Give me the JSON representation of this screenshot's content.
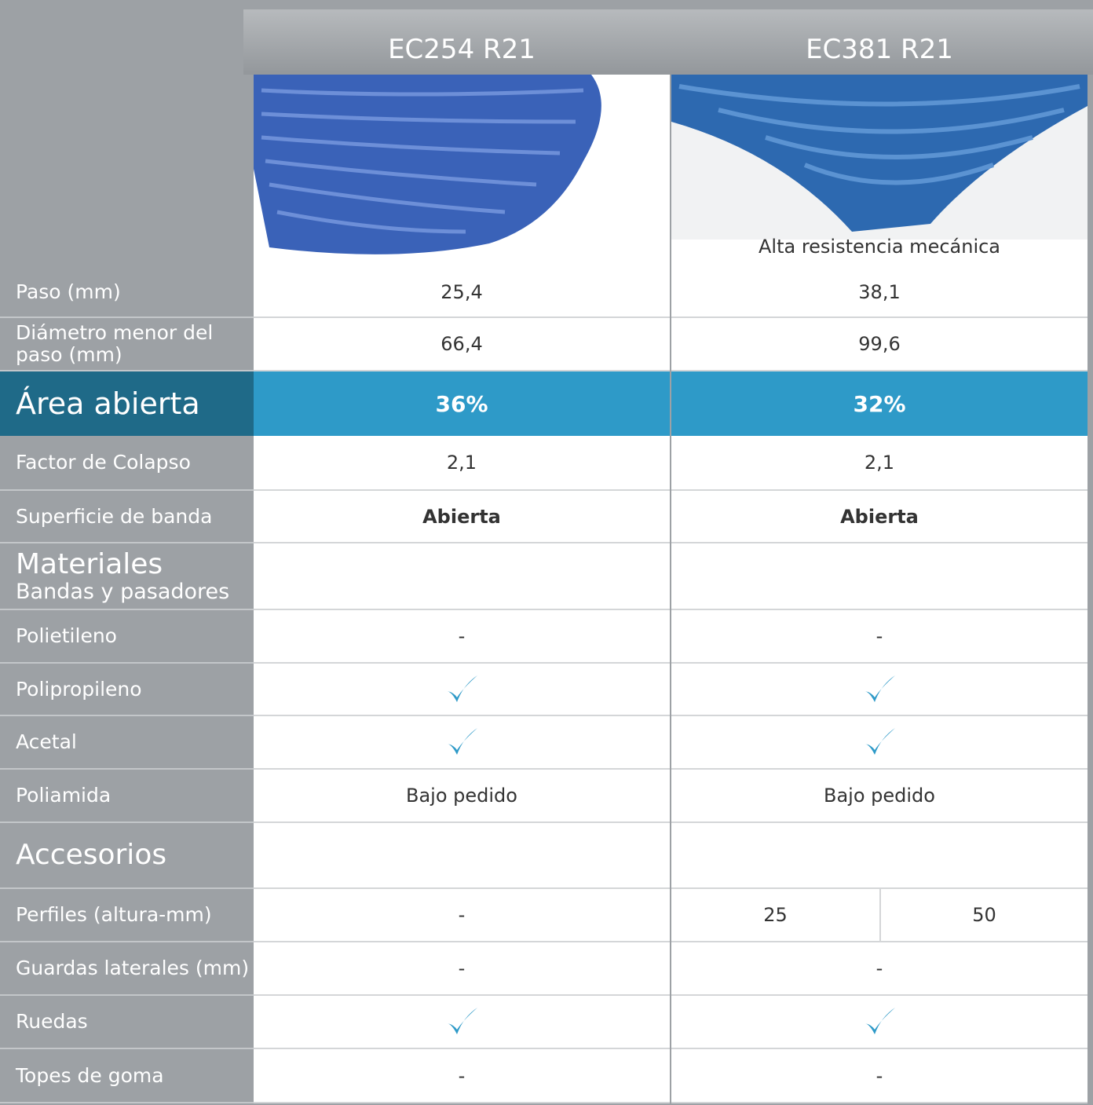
{
  "products": [
    {
      "name": "EC254 R21"
    },
    {
      "name": "EC381 R21",
      "caption": "Alta resistencia mecánica"
    }
  ],
  "rows": [
    {
      "label": "Paso (mm)",
      "cells": [
        "25,4",
        "38,1"
      ]
    },
    {
      "label": "Diámetro menor del paso (mm)",
      "cells": [
        "66,4",
        "99,6"
      ]
    },
    {
      "label": "Área abierta",
      "cells": [
        "36%",
        "32%"
      ],
      "highlight": true
    },
    {
      "label": "Factor de Colapso",
      "cells": [
        "2,1",
        "2,1"
      ]
    },
    {
      "label": "Superficie de banda",
      "cells": [
        "Abierta",
        "Abierta"
      ],
      "bold": true
    },
    {
      "section": "Materiales",
      "subtitle": "Bandas y pasadores"
    },
    {
      "label": "Polietileno",
      "cells": [
        "-",
        "-"
      ]
    },
    {
      "label": "Polipropileno",
      "cells": [
        true,
        true
      ]
    },
    {
      "label": "Acetal",
      "cells": [
        true,
        true
      ]
    },
    {
      "label": "Poliamida",
      "cells": [
        "Bajo pedido",
        "Bajo pedido"
      ]
    },
    {
      "section": "Accesorios"
    },
    {
      "label": "Perfiles (altura-mm)",
      "cells": [
        "-",
        [
          25,
          50
        ]
      ]
    },
    {
      "label": "Guardas laterales (mm)",
      "cells": [
        "-",
        "-"
      ]
    },
    {
      "label": "Ruedas",
      "cells": [
        true,
        true
      ]
    },
    {
      "label": "Topes de goma",
      "cells": [
        "-",
        "-"
      ]
    }
  ]
}
